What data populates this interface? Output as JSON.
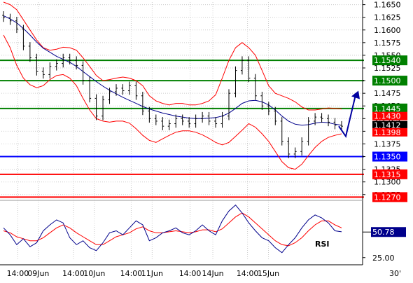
{
  "chart_data": [
    {
      "type": "candlestick",
      "subtype": "ohlc-bars-with-bollinger-bands",
      "y_ticks": [
        "1.1650",
        "1.1625",
        "1.1600",
        "1.1575",
        "1.1550",
        "1.1525",
        "1.1500",
        "1.1475",
        "1.1450",
        "1.1425",
        "1.1400",
        "1.1375",
        "1.1350",
        "1.1325",
        "1.1300",
        "1.1275"
      ],
      "ylim": [
        1.1265,
        1.1655
      ],
      "grid": true,
      "horizontal_levels": [
        {
          "value": 1.154,
          "label": "1.1540",
          "color": "#008000"
        },
        {
          "value": 1.15,
          "label": "1.1500",
          "color": "#008000"
        },
        {
          "value": 1.1445,
          "label": "1.1445",
          "color": "#008000"
        },
        {
          "value": 1.135,
          "label": "1.1350",
          "color": "#0000ff"
        },
        {
          "value": 1.1315,
          "label": "1.1315",
          "color": "#ff0000"
        },
        {
          "value": 1.127,
          "label": "1.1270",
          "color": "#ff0000"
        }
      ],
      "price_tags": [
        {
          "value": 1.143,
          "label": "1.1430",
          "color": "#ff0000"
        },
        {
          "value": 1.1412,
          "label": "1.1412",
          "color": "#000000"
        },
        {
          "value": 1.1398,
          "label": "1.1398",
          "color": "#ff0000"
        }
      ],
      "price_close": [
        1.1624,
        1.1618,
        1.1602,
        1.1568,
        1.1545,
        1.1518,
        1.1512,
        1.1528,
        1.1534,
        1.1545,
        1.154,
        1.153,
        1.15,
        1.1465,
        1.143,
        1.1462,
        1.1478,
        1.1485,
        1.148,
        1.149,
        1.147,
        1.144,
        1.1425,
        1.142,
        1.141,
        1.1415,
        1.1425,
        1.142,
        1.1415,
        1.1425,
        1.143,
        1.142,
        1.1415,
        1.143,
        1.1475,
        1.152,
        1.154,
        1.1505,
        1.147,
        1.145,
        1.144,
        1.142,
        1.138,
        1.1355,
        1.136,
        1.138,
        1.142,
        1.1428,
        1.1425,
        1.1418,
        1.1412,
        1.141
      ],
      "bollinger_upper": [
        1.1655,
        1.165,
        1.164,
        1.162,
        1.16,
        1.158,
        1.1565,
        1.156,
        1.1562,
        1.1566,
        1.1565,
        1.156,
        1.1545,
        1.1528,
        1.151,
        1.15,
        1.1502,
        1.1505,
        1.1507,
        1.1505,
        1.15,
        1.149,
        1.147,
        1.146,
        1.1455,
        1.1452,
        1.1455,
        1.1455,
        1.1452,
        1.1452,
        1.1455,
        1.146,
        1.1472,
        1.1505,
        1.154,
        1.1565,
        1.1575,
        1.1565,
        1.155,
        1.152,
        1.149,
        1.1475,
        1.147,
        1.1465,
        1.1458,
        1.1448,
        1.1442,
        1.1442,
        1.1444,
        1.1446,
        1.1445,
        1.1444
      ],
      "bollinger_middle": [
        1.1628,
        1.1622,
        1.1614,
        1.1603,
        1.159,
        1.1576,
        1.1564,
        1.1556,
        1.1548,
        1.1542,
        1.1536,
        1.1528,
        1.1518,
        1.1508,
        1.1498,
        1.1489,
        1.1481,
        1.1474,
        1.1467,
        1.1461,
        1.1455,
        1.1449,
        1.1444,
        1.144,
        1.1436,
        1.1433,
        1.143,
        1.1428,
        1.1426,
        1.1425,
        1.1425,
        1.1426,
        1.1427,
        1.143,
        1.1436,
        1.1445,
        1.1455,
        1.146,
        1.1461,
        1.1458,
        1.1452,
        1.1442,
        1.143,
        1.142,
        1.1414,
        1.1412,
        1.1413,
        1.1416,
        1.1418,
        1.1417,
        1.1414,
        1.1412
      ],
      "bollinger_lower": [
        1.159,
        1.1565,
        1.153,
        1.1505,
        1.1492,
        1.1486,
        1.149,
        1.1502,
        1.151,
        1.1512,
        1.1505,
        1.149,
        1.1465,
        1.1442,
        1.1425,
        1.142,
        1.1418,
        1.142,
        1.142,
        1.1416,
        1.1405,
        1.1392,
        1.1382,
        1.1378,
        1.1385,
        1.1392,
        1.1398,
        1.1401,
        1.1401,
        1.1398,
        1.1393,
        1.1386,
        1.1378,
        1.1373,
        1.1378,
        1.139,
        1.1402,
        1.1415,
        1.1408,
        1.1395,
        1.138,
        1.136,
        1.134,
        1.1328,
        1.1325,
        1.1335,
        1.1352,
        1.1368,
        1.138,
        1.1388,
        1.1392,
        1.1395
      ],
      "forecast_arrow": {
        "from": 1.139,
        "to": 1.148,
        "color": "#0000a0"
      }
    },
    {
      "type": "line",
      "indicator": "RSI",
      "label": "RSI",
      "y_ticks": [
        "25.00"
      ],
      "ylim": [
        22,
        82
      ],
      "current_value": 50.78,
      "current_label": "50.78",
      "rsi": [
        55,
        48,
        38,
        44,
        36,
        40,
        52,
        58,
        63,
        60,
        45,
        38,
        42,
        35,
        32,
        40,
        50,
        52,
        48,
        55,
        62,
        58,
        42,
        45,
        50,
        52,
        55,
        50,
        48,
        52,
        58,
        52,
        48,
        62,
        72,
        78,
        70,
        60,
        52,
        45,
        42,
        35,
        30,
        38,
        45,
        55,
        63,
        68,
        65,
        60,
        52,
        51
      ],
      "rsi_signal": [
        52,
        50,
        46,
        44,
        42,
        42,
        45,
        50,
        55,
        58,
        55,
        50,
        46,
        42,
        38,
        38,
        42,
        46,
        48,
        50,
        54,
        56,
        52,
        50,
        50,
        51,
        52,
        51,
        50,
        51,
        53,
        53,
        51,
        54,
        60,
        66,
        70,
        66,
        60,
        54,
        48,
        42,
        38,
        37,
        40,
        45,
        52,
        58,
        62,
        62,
        58,
        55
      ],
      "color": "#00008b",
      "signal_color": "#ff0000"
    }
  ],
  "x_labels": [
    "14:00",
    "09Jun",
    "14:00",
    "10Jun",
    "14:00",
    "11Jun",
    "14:00",
    "14Jun",
    "14:00",
    "15Jun"
  ],
  "timeframe": "30'",
  "colors": {
    "price_bars": "#000000",
    "bollinger": "#ff0000",
    "middle_band": "#00008b",
    "rsi_line": "#00008b",
    "rsi_signal": "#ff0000"
  }
}
